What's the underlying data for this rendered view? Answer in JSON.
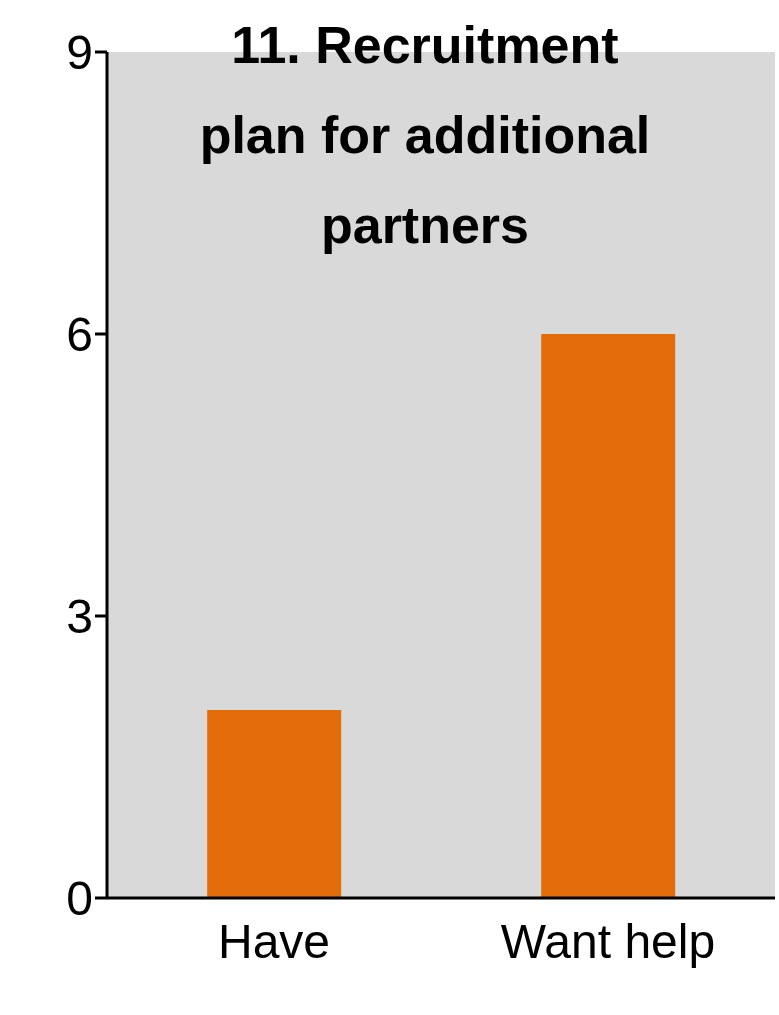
{
  "chart_data": {
    "type": "bar",
    "title": "11. Recruitment plan for additional partners",
    "categories": [
      "Have",
      "Want help"
    ],
    "values": [
      2,
      6
    ],
    "color": "#e36c0a",
    "ylim": [
      0,
      9
    ],
    "yticks": [
      0,
      3,
      6,
      9
    ],
    "grid": false
  }
}
